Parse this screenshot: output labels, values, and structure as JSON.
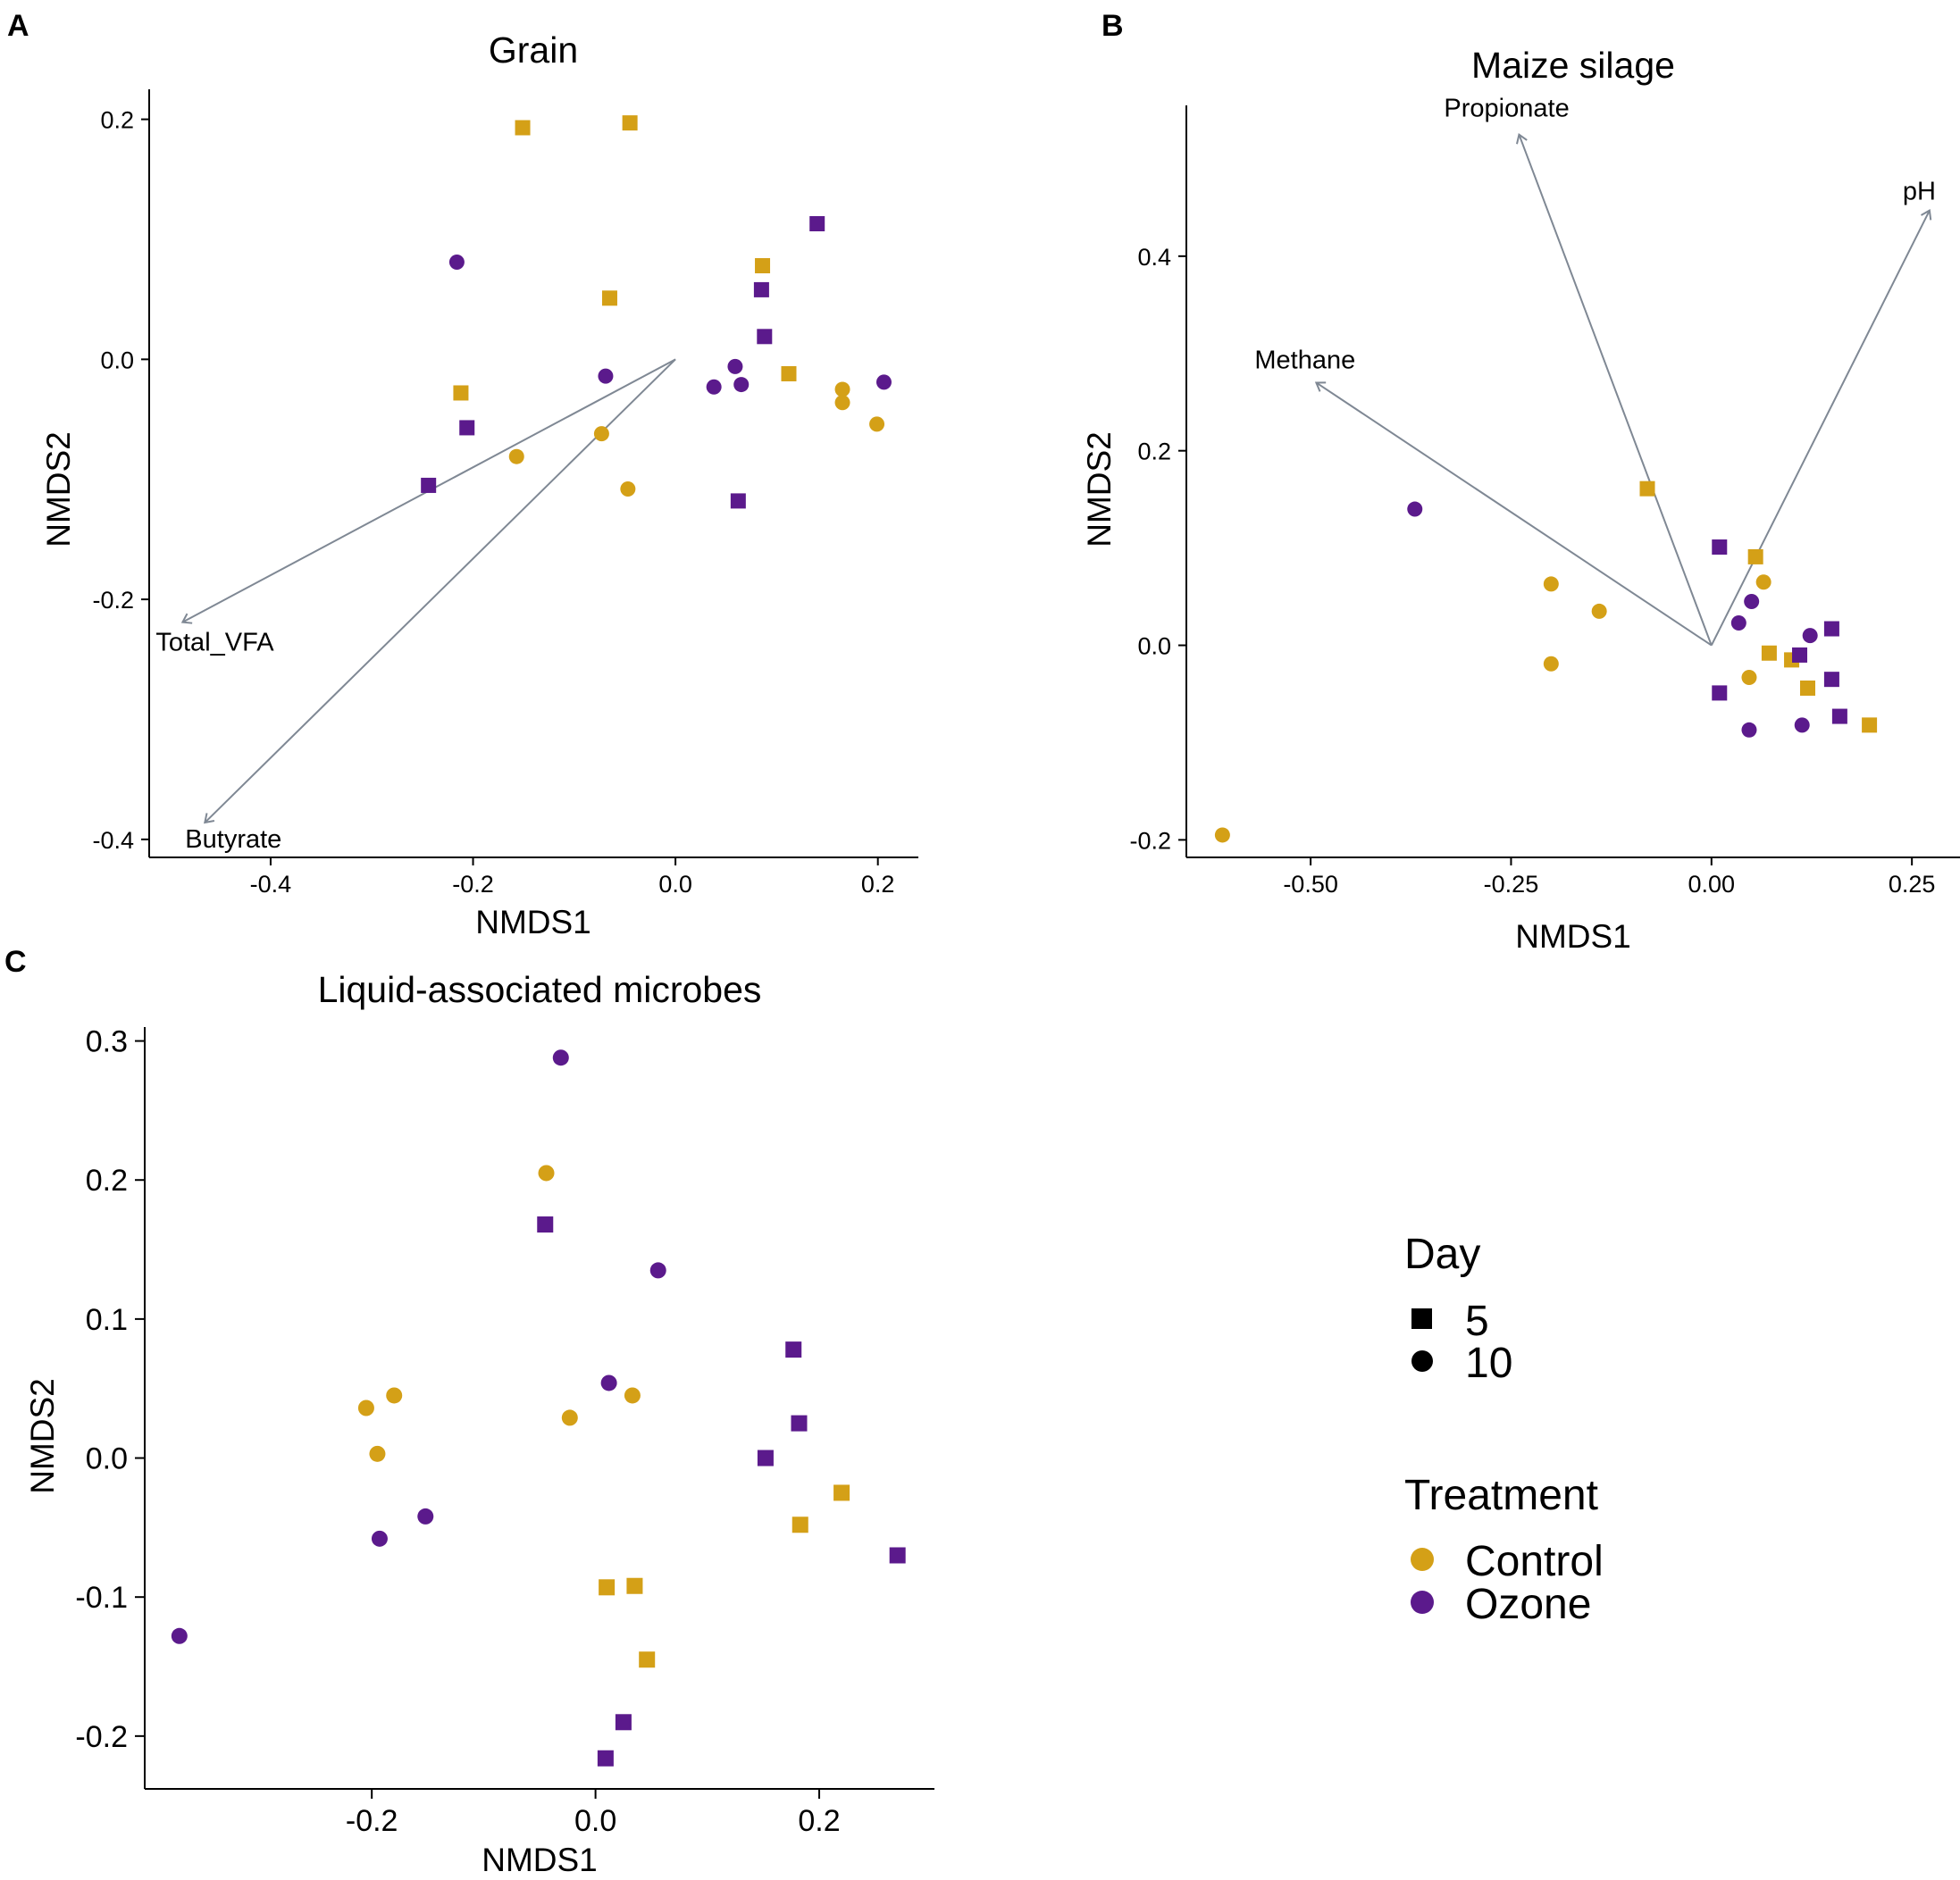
{
  "colors": {
    "control": "#D4A017",
    "ozone": "#5B1A8C",
    "arrow": "#7F8894",
    "axis": "#000000"
  },
  "legend": {
    "day_title": "Day",
    "day_entries": [
      {
        "label": "5",
        "shape": "square"
      },
      {
        "label": "10",
        "shape": "circle"
      }
    ],
    "treatment_title": "Treatment",
    "treatment_entries": [
      {
        "label": "Control",
        "color_key": "control"
      },
      {
        "label": "Ozone",
        "color_key": "ozone"
      }
    ]
  },
  "chart_data": [
    {
      "panel": "A",
      "type": "scatter",
      "title": "Grain",
      "xlabel": "NMDS1",
      "ylabel": "NMDS2",
      "xlim": [
        -0.52,
        0.24
      ],
      "ylim": [
        -0.415,
        0.225
      ],
      "xticks": [
        {
          "value": -0.4,
          "label": "-0.4"
        },
        {
          "value": -0.2,
          "label": "-0.2"
        },
        {
          "value": 0.0,
          "label": "0.0"
        },
        {
          "value": 0.2,
          "label": "0.2"
        }
      ],
      "yticks": [
        {
          "value": -0.4,
          "label": "-0.4"
        },
        {
          "value": -0.2,
          "label": "-0.2"
        },
        {
          "value": 0.0,
          "label": "0.0"
        },
        {
          "value": 0.2,
          "label": "0.2"
        }
      ],
      "vectors": [
        {
          "label": "Total_VFA",
          "x": -0.487,
          "y": -0.219
        },
        {
          "label": "Butyrate",
          "x": -0.465,
          "y": -0.386
        }
      ],
      "points": [
        {
          "x": -0.151,
          "y": 0.193,
          "day": "5",
          "treatment": "Control"
        },
        {
          "x": -0.045,
          "y": 0.197,
          "day": "5",
          "treatment": "Control"
        },
        {
          "x": -0.065,
          "y": 0.051,
          "day": "5",
          "treatment": "Control"
        },
        {
          "x": 0.086,
          "y": 0.078,
          "day": "5",
          "treatment": "Control"
        },
        {
          "x": -0.212,
          "y": -0.028,
          "day": "5",
          "treatment": "Control"
        },
        {
          "x": 0.112,
          "y": -0.012,
          "day": "5",
          "treatment": "Control"
        },
        {
          "x": 0.14,
          "y": 0.113,
          "day": "5",
          "treatment": "Ozone"
        },
        {
          "x": 0.085,
          "y": 0.058,
          "day": "5",
          "treatment": "Ozone"
        },
        {
          "x": 0.088,
          "y": 0.019,
          "day": "5",
          "treatment": "Ozone"
        },
        {
          "x": -0.206,
          "y": -0.057,
          "day": "5",
          "treatment": "Ozone"
        },
        {
          "x": -0.244,
          "y": -0.105,
          "day": "5",
          "treatment": "Ozone"
        },
        {
          "x": 0.062,
          "y": -0.118,
          "day": "5",
          "treatment": "Ozone"
        },
        {
          "x": -0.157,
          "y": -0.081,
          "day": "10",
          "treatment": "Control"
        },
        {
          "x": -0.073,
          "y": -0.062,
          "day": "10",
          "treatment": "Control"
        },
        {
          "x": -0.047,
          "y": -0.108,
          "day": "10",
          "treatment": "Control"
        },
        {
          "x": 0.165,
          "y": -0.025,
          "day": "10",
          "treatment": "Control"
        },
        {
          "x": 0.165,
          "y": -0.036,
          "day": "10",
          "treatment": "Control"
        },
        {
          "x": 0.199,
          "y": -0.054,
          "day": "10",
          "treatment": "Control"
        },
        {
          "x": -0.216,
          "y": 0.081,
          "day": "10",
          "treatment": "Ozone"
        },
        {
          "x": -0.069,
          "y": -0.014,
          "day": "10",
          "treatment": "Ozone"
        },
        {
          "x": 0.059,
          "y": -0.006,
          "day": "10",
          "treatment": "Ozone"
        },
        {
          "x": 0.038,
          "y": -0.023,
          "day": "10",
          "treatment": "Ozone"
        },
        {
          "x": 0.065,
          "y": -0.021,
          "day": "10",
          "treatment": "Ozone"
        },
        {
          "x": 0.206,
          "y": -0.019,
          "day": "10",
          "treatment": "Ozone"
        }
      ]
    },
    {
      "panel": "B",
      "type": "scatter",
      "title": "Maize silage",
      "xlabel": "NMDS1",
      "ylabel": "NMDS2",
      "xlim": [
        -0.655,
        0.31
      ],
      "ylim": [
        -0.218,
        0.555
      ],
      "xticks": [
        {
          "value": -0.5,
          "label": "-0.50"
        },
        {
          "value": -0.25,
          "label": "-0.25"
        },
        {
          "value": 0.0,
          "label": "0.00"
        },
        {
          "value": 0.25,
          "label": "0.25"
        }
      ],
      "yticks": [
        {
          "value": -0.2,
          "label": "-0.2"
        },
        {
          "value": 0.0,
          "label": "0.0"
        },
        {
          "value": 0.2,
          "label": "0.2"
        },
        {
          "value": 0.4,
          "label": "0.4"
        }
      ],
      "vectors": [
        {
          "label": "Propionate",
          "x": -0.24,
          "y": 0.525
        },
        {
          "label": "pH",
          "x": 0.272,
          "y": 0.447
        },
        {
          "label": "Methane",
          "x": -0.493,
          "y": 0.27
        }
      ],
      "points": [
        {
          "x": -0.08,
          "y": 0.161,
          "day": "5",
          "treatment": "Control"
        },
        {
          "x": 0.055,
          "y": 0.091,
          "day": "5",
          "treatment": "Control"
        },
        {
          "x": 0.072,
          "y": -0.008,
          "day": "5",
          "treatment": "Control"
        },
        {
          "x": 0.1,
          "y": -0.015,
          "day": "5",
          "treatment": "Control"
        },
        {
          "x": 0.12,
          "y": -0.044,
          "day": "5",
          "treatment": "Control"
        },
        {
          "x": 0.197,
          "y": -0.082,
          "day": "5",
          "treatment": "Control"
        },
        {
          "x": 0.01,
          "y": 0.101,
          "day": "5",
          "treatment": "Ozone"
        },
        {
          "x": 0.01,
          "y": -0.049,
          "day": "5",
          "treatment": "Ozone"
        },
        {
          "x": 0.11,
          "y": -0.01,
          "day": "5",
          "treatment": "Ozone"
        },
        {
          "x": 0.15,
          "y": 0.017,
          "day": "5",
          "treatment": "Ozone"
        },
        {
          "x": 0.15,
          "y": -0.035,
          "day": "5",
          "treatment": "Ozone"
        },
        {
          "x": 0.16,
          "y": -0.073,
          "day": "5",
          "treatment": "Ozone"
        },
        {
          "x": -0.2,
          "y": 0.063,
          "day": "10",
          "treatment": "Control"
        },
        {
          "x": -0.14,
          "y": 0.035,
          "day": "10",
          "treatment": "Control"
        },
        {
          "x": -0.2,
          "y": -0.019,
          "day": "10",
          "treatment": "Control"
        },
        {
          "x": 0.065,
          "y": 0.065,
          "day": "10",
          "treatment": "Control"
        },
        {
          "x": 0.047,
          "y": -0.033,
          "day": "10",
          "treatment": "Control"
        },
        {
          "x": -0.61,
          "y": -0.195,
          "day": "10",
          "treatment": "Control"
        },
        {
          "x": -0.37,
          "y": 0.14,
          "day": "10",
          "treatment": "Ozone"
        },
        {
          "x": 0.05,
          "y": 0.045,
          "day": "10",
          "treatment": "Ozone"
        },
        {
          "x": 0.034,
          "y": 0.023,
          "day": "10",
          "treatment": "Ozone"
        },
        {
          "x": 0.123,
          "y": 0.01,
          "day": "10",
          "treatment": "Ozone"
        },
        {
          "x": 0.047,
          "y": -0.087,
          "day": "10",
          "treatment": "Ozone"
        },
        {
          "x": 0.113,
          "y": -0.082,
          "day": "10",
          "treatment": "Ozone"
        }
      ]
    },
    {
      "panel": "C",
      "type": "scatter",
      "title": "Liquid-associated microbes",
      "xlabel": "NMDS1",
      "ylabel": "NMDS2",
      "xlim": [
        -0.403,
        0.303
      ],
      "ylim": [
        -0.238,
        0.31
      ],
      "xticks": [
        {
          "value": -0.2,
          "label": "-0.2"
        },
        {
          "value": 0.0,
          "label": "0.0"
        },
        {
          "value": 0.2,
          "label": "0.2"
        }
      ],
      "yticks": [
        {
          "value": -0.2,
          "label": "-0.2"
        },
        {
          "value": -0.1,
          "label": "-0.1"
        },
        {
          "value": 0.0,
          "label": "0.0"
        },
        {
          "value": 0.1,
          "label": "0.1"
        },
        {
          "value": 0.2,
          "label": "0.2"
        },
        {
          "value": 0.3,
          "label": "0.3"
        }
      ],
      "vectors": [],
      "points": [
        {
          "x": 0.01,
          "y": -0.093,
          "day": "5",
          "treatment": "Control"
        },
        {
          "x": 0.035,
          "y": -0.092,
          "day": "5",
          "treatment": "Control"
        },
        {
          "x": 0.046,
          "y": -0.145,
          "day": "5",
          "treatment": "Control"
        },
        {
          "x": 0.183,
          "y": -0.048,
          "day": "5",
          "treatment": "Control"
        },
        {
          "x": 0.22,
          "y": -0.025,
          "day": "5",
          "treatment": "Control"
        },
        {
          "x": -0.045,
          "y": 0.168,
          "day": "5",
          "treatment": "Ozone"
        },
        {
          "x": 0.177,
          "y": 0.078,
          "day": "5",
          "treatment": "Ozone"
        },
        {
          "x": 0.182,
          "y": 0.025,
          "day": "5",
          "treatment": "Ozone"
        },
        {
          "x": 0.152,
          "y": 0.0,
          "day": "5",
          "treatment": "Ozone"
        },
        {
          "x": 0.27,
          "y": -0.07,
          "day": "5",
          "treatment": "Ozone"
        },
        {
          "x": 0.025,
          "y": -0.19,
          "day": "5",
          "treatment": "Ozone"
        },
        {
          "x": 0.009,
          "y": -0.216,
          "day": "5",
          "treatment": "Ozone"
        },
        {
          "x": -0.044,
          "y": 0.205,
          "day": "10",
          "treatment": "Control"
        },
        {
          "x": -0.205,
          "y": 0.036,
          "day": "10",
          "treatment": "Control"
        },
        {
          "x": -0.18,
          "y": 0.045,
          "day": "10",
          "treatment": "Control"
        },
        {
          "x": -0.195,
          "y": 0.003,
          "day": "10",
          "treatment": "Control"
        },
        {
          "x": -0.023,
          "y": 0.029,
          "day": "10",
          "treatment": "Control"
        },
        {
          "x": 0.033,
          "y": 0.045,
          "day": "10",
          "treatment": "Control"
        },
        {
          "x": -0.031,
          "y": 0.288,
          "day": "10",
          "treatment": "Ozone"
        },
        {
          "x": 0.056,
          "y": 0.135,
          "day": "10",
          "treatment": "Ozone"
        },
        {
          "x": 0.012,
          "y": 0.054,
          "day": "10",
          "treatment": "Ozone"
        },
        {
          "x": -0.193,
          "y": -0.058,
          "day": "10",
          "treatment": "Ozone"
        },
        {
          "x": -0.152,
          "y": -0.042,
          "day": "10",
          "treatment": "Ozone"
        },
        {
          "x": -0.372,
          "y": -0.128,
          "day": "10",
          "treatment": "Ozone"
        }
      ]
    }
  ]
}
